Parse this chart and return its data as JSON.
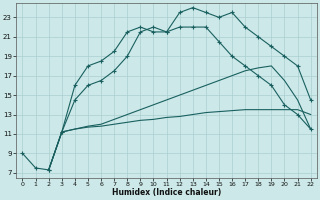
{
  "xlabel": "Humidex (Indice chaleur)",
  "xlim": [
    -0.5,
    22.5
  ],
  "ylim": [
    6.5,
    24.5
  ],
  "xticks": [
    0,
    1,
    2,
    3,
    4,
    5,
    6,
    7,
    8,
    9,
    10,
    11,
    12,
    13,
    14,
    15,
    16,
    17,
    18,
    19,
    20,
    21,
    22
  ],
  "yticks": [
    7,
    9,
    11,
    13,
    15,
    17,
    19,
    21,
    23
  ],
  "bg_color": "#cce8e8",
  "grid_color": "#aacfcf",
  "line_color": "#1a6060",
  "series1_x": [
    0,
    1,
    2,
    3,
    4,
    5,
    6,
    7,
    8,
    9,
    10,
    11,
    12,
    13,
    14,
    15,
    16,
    17,
    18,
    19,
    20,
    21,
    22
  ],
  "series1_y": [
    9,
    7.5,
    7.3,
    11.2,
    16.0,
    18.0,
    18.5,
    19.5,
    21.5,
    22.0,
    21.5,
    21.5,
    23.5,
    24.0,
    23.5,
    23.0,
    23.5,
    22.0,
    21.0,
    20.0,
    19.0,
    18.0,
    14.5
  ],
  "series2_x": [
    2,
    3,
    4,
    5,
    6,
    7,
    8,
    9,
    10,
    11,
    12,
    13,
    14,
    15,
    16,
    17,
    18,
    19,
    20,
    21,
    22
  ],
  "series2_y": [
    7.3,
    11.2,
    14.5,
    16.0,
    16.5,
    17.5,
    19.0,
    21.5,
    22.0,
    21.5,
    22.0,
    22.0,
    22.0,
    20.5,
    19.0,
    18.0,
    17.0,
    16.0,
    14.0,
    13.0,
    11.5
  ],
  "series3_x": [
    2,
    3,
    4,
    5,
    6,
    7,
    8,
    9,
    10,
    11,
    12,
    13,
    14,
    15,
    16,
    17,
    18,
    19,
    20,
    21,
    22
  ],
  "series3_y": [
    7.3,
    11.2,
    11.5,
    11.7,
    11.8,
    12.0,
    12.2,
    12.4,
    12.5,
    12.7,
    12.8,
    13.0,
    13.2,
    13.3,
    13.4,
    13.5,
    13.5,
    13.5,
    13.5,
    13.5,
    13.0
  ],
  "series4_x": [
    2,
    3,
    4,
    5,
    6,
    7,
    8,
    9,
    10,
    11,
    12,
    13,
    14,
    15,
    16,
    17,
    18,
    19,
    20,
    21,
    22
  ],
  "series4_y": [
    7.3,
    11.2,
    11.5,
    11.8,
    12.0,
    12.5,
    13.0,
    13.5,
    14.0,
    14.5,
    15.0,
    15.5,
    16.0,
    16.5,
    17.0,
    17.5,
    17.8,
    18.0,
    16.5,
    14.5,
    11.5
  ]
}
